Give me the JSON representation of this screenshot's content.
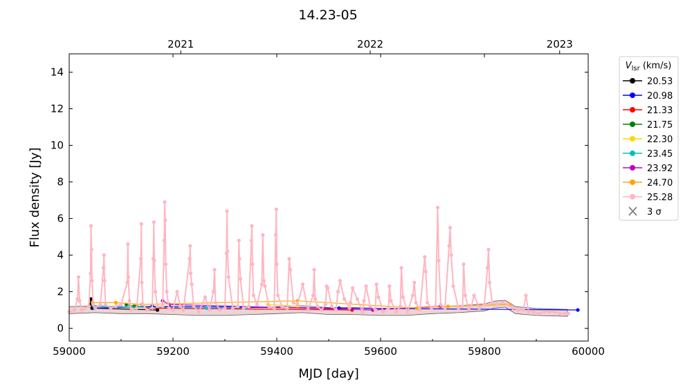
{
  "chart_data": {
    "type": "line",
    "title": "14.23-05",
    "xlabel": "MJD [day]",
    "ylabel": "Flux density [Jy]",
    "xlim": [
      59000,
      60000
    ],
    "ylim": [
      -0.7,
      15
    ],
    "x_ticks": [
      59000,
      59200,
      59400,
      59600,
      59800,
      60000
    ],
    "x_tick_labels": [
      "59000",
      "59200",
      "59400",
      "59600",
      "59800",
      "60000"
    ],
    "y_ticks": [
      0,
      2,
      4,
      6,
      8,
      10,
      12,
      14
    ],
    "y_tick_labels": [
      "0",
      "2",
      "4",
      "6",
      "8",
      "10",
      "12",
      "14"
    ],
    "top_axis": {
      "ticks": [
        59215,
        59580,
        59945
      ],
      "labels": [
        "2021",
        "2022",
        "2023"
      ]
    },
    "grid": false,
    "legend": {
      "title": "V_lsr (km/s)",
      "title_main": "V",
      "title_sub": "lsr",
      "title_unit": " (km/s)",
      "placement": "outside-right",
      "sigma_label": "3 σ",
      "sigma_color": "#808080"
    },
    "series": [
      {
        "name": "20.53",
        "color": "#000000",
        "x": [
          59040,
          59042,
          59044,
          59170
        ],
        "y": [
          1.3,
          1.6,
          1.1,
          1.0
        ]
      },
      {
        "name": "20.98",
        "color": "#0000ff",
        "x": [
          59048,
          59160,
          59520,
          59980
        ],
        "y": [
          1.1,
          1.2,
          1.1,
          1.0
        ]
      },
      {
        "name": "21.33",
        "color": "#ff0000",
        "x": [
          59150,
          59545
        ],
        "y": [
          1.1,
          1.0
        ]
      },
      {
        "name": "21.75",
        "color": "#008000",
        "x": [
          59110,
          59125,
          59130
        ],
        "y": [
          1.3,
          1.2,
          1.2
        ]
      },
      {
        "name": "22.30",
        "color": "#ffd700",
        "x": [
          59383,
          59440
        ],
        "y": [
          1.3,
          1.2
        ]
      },
      {
        "name": "23.45",
        "color": "#00bfbf",
        "x": [
          59048,
          59265,
          59340
        ],
        "y": [
          1.2,
          1.1,
          1.1
        ]
      },
      {
        "name": "23.92",
        "color": "#bf00bf",
        "x": [
          59180,
          59193,
          59585,
          59715
        ],
        "y": [
          1.5,
          1.3,
          1.0,
          1.2
        ]
      },
      {
        "name": "24.70",
        "color": "#ffa500",
        "x": [
          59045,
          59090,
          59140,
          59440,
          59670,
          59730,
          59850
        ],
        "y": [
          1.4,
          1.4,
          1.3,
          1.5,
          1.1,
          1.2,
          1.3
        ]
      },
      {
        "name": "25.28",
        "color": "#ffb6c1",
        "x": [
          59000,
          59010,
          59016,
          59018,
          59020,
          59024,
          59030,
          59038,
          59041,
          59042,
          59043,
          59044,
          59046,
          59050,
          59060,
          59066,
          59067,
          59068,
          59070,
          59080,
          59090,
          59100,
          59112,
          59113,
          59114,
          59116,
          59120,
          59130,
          59138,
          59139,
          59140,
          59142,
          59150,
          59160,
          59162,
          59163,
          59164,
          59166,
          59170,
          59180,
          59183,
          59184,
          59185,
          59186,
          59188,
          59192,
          59200,
          59208,
          59214,
          59220,
          59232,
          59233,
          59234,
          59236,
          59240,
          59250,
          59262,
          59270,
          59278,
          59280,
          59282,
          59290,
          59300,
          59303,
          59304,
          59305,
          59307,
          59315,
          59325,
          59327,
          59328,
          59330,
          59336,
          59346,
          59351,
          59352,
          59353,
          59355,
          59362,
          59371,
          59373,
          59375,
          59377,
          59385,
          59395,
          59398,
          59399,
          59400,
          59402,
          59410,
          59420,
          59424,
          59426,
          59432,
          59440,
          59450,
          59460,
          59470,
          59472,
          59474,
          59478,
          59486,
          59494,
          59496,
          59498,
          59506,
          59514,
          59518,
          59522,
          59530,
          59540,
          59542,
          59546,
          59555,
          59565,
          59568,
          59572,
          59580,
          59590,
          59592,
          59596,
          59605,
          59615,
          59617,
          59620,
          59630,
          59638,
          59640,
          59643,
          59652,
          59662,
          59665,
          59668,
          59676,
          59685,
          59687,
          59690,
          59698,
          59706,
          59710,
          59712,
          59716,
          59724,
          59732,
          59734,
          59736,
          59740,
          59750,
          59758,
          59760,
          59763,
          59770,
          59775,
          59780,
          59790,
          59800,
          59806,
          59808,
          59810,
          59815,
          59825,
          59835,
          59845,
          59855,
          59865,
          59875,
          59880,
          59885,
          59895,
          59905,
          59915,
          59925,
          59935,
          59945,
          59955,
          59962
        ],
        "y": [
          0.9,
          1.0,
          1.6,
          2.8,
          1.5,
          1.0,
          1.1,
          1.2,
          3.0,
          5.6,
          4.3,
          2.6,
          1.3,
          1.1,
          1.3,
          3.3,
          4.0,
          2.6,
          1.3,
          1.1,
          1.2,
          1.3,
          2.5,
          4.6,
          2.8,
          1.5,
          1.0,
          1.1,
          3.8,
          5.7,
          2.5,
          1.3,
          1.0,
          1.1,
          3.8,
          5.8,
          3.7,
          2.0,
          1.2,
          1.2,
          4.8,
          6.9,
          5.9,
          3.5,
          2.0,
          1.1,
          1.0,
          2.0,
          1.2,
          1.0,
          3.8,
          4.5,
          3.0,
          2.4,
          1.2,
          0.9,
          1.7,
          1.0,
          2.0,
          3.2,
          1.4,
          1.0,
          1.1,
          4.1,
          6.4,
          4.2,
          2.8,
          1.1,
          1.2,
          4.8,
          3.8,
          2.7,
          1.1,
          1.2,
          4.8,
          5.6,
          3.5,
          1.8,
          1.3,
          2.4,
          5.1,
          2.6,
          2.3,
          1.2,
          1.1,
          5.1,
          6.5,
          3.5,
          1.8,
          1.2,
          1.1,
          3.8,
          3.2,
          1.4,
          1.3,
          2.4,
          1.0,
          1.8,
          3.2,
          1.6,
          1.2,
          1.0,
          1.3,
          2.3,
          2.2,
          1.2,
          1.0,
          2.0,
          2.6,
          1.6,
          1.1,
          1.4,
          2.2,
          1.6,
          0.9,
          1.5,
          2.3,
          1.2,
          1.0,
          2.4,
          1.7,
          0.9,
          1.1,
          2.3,
          1.5,
          0.9,
          1.2,
          3.3,
          1.7,
          0.9,
          1.8,
          2.5,
          1.4,
          1.0,
          3.9,
          3.1,
          1.4,
          1.1,
          1.2,
          6.6,
          3.7,
          1.3,
          1.1,
          4.5,
          5.5,
          4.0,
          2.3,
          1.1,
          1.2,
          3.5,
          1.8,
          1.0,
          1.2,
          1.8,
          1.1,
          1.3,
          3.3,
          4.3,
          2.5,
          1.4,
          1.3,
          1.4,
          1.3,
          1.1,
          1.0,
          1.0,
          1.8,
          0.9,
          0.9,
          0.8,
          0.9,
          0.9,
          0.9,
          0.8,
          0.8,
          0.8
        ]
      }
    ],
    "noise_band": {
      "x": [
        59000,
        59050,
        59100,
        59150,
        59200,
        59250,
        59300,
        59350,
        59400,
        59450,
        59500,
        59550,
        59600,
        59650,
        59700,
        59750,
        59800,
        59820,
        59840,
        59860,
        59900,
        59960
      ],
      "y": [
        1.0,
        1.05,
        1.0,
        1.0,
        0.95,
        0.9,
        0.9,
        0.95,
        1.0,
        1.05,
        0.95,
        0.95,
        0.9,
        0.9,
        1.0,
        1.05,
        1.15,
        1.3,
        1.35,
        1.0,
        0.9,
        0.85
      ]
    }
  }
}
